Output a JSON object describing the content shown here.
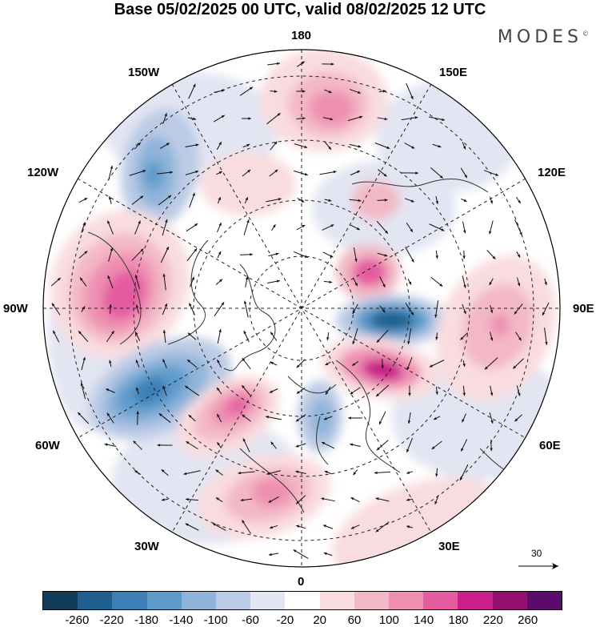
{
  "title": "Base 05/02/2025 00 UTC, valid 08/02/2025 12 UTC",
  "brand": "MODES",
  "brand_mark": "©",
  "longitude_labels": {
    "l180": "180",
    "l150w": "150W",
    "l150e": "150E",
    "l120w": "120W",
    "l120e": "120E",
    "l90w": "90W",
    "l90e": "90E",
    "l60w": "60W",
    "l60e": "60E",
    "l30w": "30W",
    "l30e": "30E",
    "l0": "0"
  },
  "reference_vector": {
    "label": "30",
    "icon": "arrow-right-icon"
  },
  "colorbar": {
    "colors": [
      "#123b5a",
      "#1f5f8f",
      "#3b7fb6",
      "#5e9bcb",
      "#8fb4da",
      "#bccbe5",
      "#e2e5f2",
      "#ffffff",
      "#f9dcdf",
      "#f3b8c5",
      "#ee8fb2",
      "#e45ba0",
      "#c81f88",
      "#94106f",
      "#5a0b6b"
    ],
    "ticks": [
      "-260",
      "-220",
      "-180",
      "-140",
      "-100",
      "-60",
      "-20",
      "20",
      "60",
      "100",
      "140",
      "180",
      "220",
      "260"
    ]
  },
  "map_layers": {
    "projection": "north-polar-stereographic",
    "field": "geopotential height anomaly (shaded)",
    "vectors": "wind arrows",
    "coastlines": true,
    "graticule": "dashed"
  }
}
